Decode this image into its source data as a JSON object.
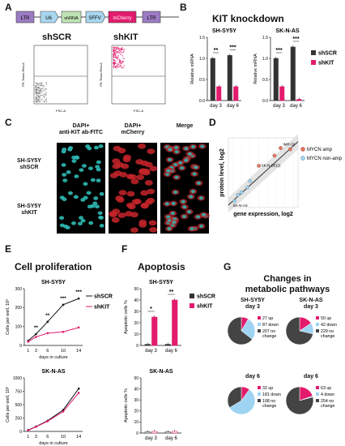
{
  "panels": {
    "A": "A",
    "B": "B",
    "C": "C",
    "D": "D",
    "E": "E",
    "F": "F",
    "G": "G"
  },
  "colors": {
    "mcherry": "#e31b6d",
    "gray": "#333333",
    "purple": "#9b7cc2",
    "blue": "#a8d6ee",
    "green": "#bfe3b4",
    "lightblue": "#9fd3f2",
    "salmon": "#e6735c"
  },
  "A": {
    "construct": [
      "LTR",
      "U6",
      "shRNA",
      "SFFV",
      "mCherry",
      "LTR"
    ],
    "flow_left_label": "shSCR",
    "flow_right_label": "shKIT",
    "y_axis": "PE-Texas Red-A",
    "x_axis": "FSC-A"
  },
  "B": {
    "title": "KIT knockdown",
    "legend": [
      "shSCR",
      "shKIT"
    ],
    "chart_data": [
      {
        "type": "bar",
        "title": "SH-SY5Y",
        "ylabel": "Relative mRNA",
        "categories": [
          "day 3",
          "day 6"
        ],
        "ylim": [
          0,
          1.5
        ],
        "yticks": [
          "0.0",
          "0.5",
          "1.0",
          "1.5"
        ],
        "series": [
          {
            "name": "shSCR",
            "values": [
              1.0,
              1.07
            ]
          },
          {
            "name": "shKIT",
            "values": [
              0.33,
              0.33
            ]
          }
        ],
        "sig": [
          "**",
          "***"
        ]
      },
      {
        "type": "bar",
        "title": "SK-N-AS",
        "ylabel": "Relative mRNA",
        "categories": [
          "day 3",
          "day 6"
        ],
        "ylim": [
          0,
          1.5
        ],
        "yticks": [
          "0.0",
          "0.5",
          "1.0",
          "1.5"
        ],
        "series": [
          {
            "name": "shSCR",
            "values": [
              1.0,
              1.27
            ]
          },
          {
            "name": "shKIT",
            "values": [
              0.33,
              0.03
            ]
          }
        ],
        "sig": [
          "***",
          "***"
        ]
      }
    ]
  },
  "C": {
    "headers": [
      "DAPI+\nanti-KIT ab-FITC",
      "DAPI+\nmCherry",
      "Merge"
    ],
    "rows": [
      "SH-SY5Y\nshSCR",
      "SH-SY5Y\nshKIT"
    ]
  },
  "D": {
    "chart_data": {
      "type": "scatter",
      "xlabel": "gene expression, log2",
      "ylabel": "protein level, log2",
      "series": [
        {
          "name": "MYCN amp",
          "values": [
            [
              1.0,
              1.3
            ],
            [
              3.5,
              2.7
            ],
            [
              4.6,
              2.6
            ],
            [
              2.8,
              2.1
            ]
          ]
        },
        {
          "name": "MYCN non-amp",
          "values": [
            [
              -1.8,
              -1.5
            ],
            [
              -1.0,
              -0.8
            ],
            [
              -0.3,
              -0.4
            ],
            [
              -1.4,
              -1.0
            ],
            [
              0.0,
              0.1
            ]
          ]
        }
      ],
      "annotations": [
        "IMR-32",
        "SK-N-BE(2)",
        "SK-N-AS"
      ]
    }
  },
  "E": {
    "title": "Cell proliferation",
    "legend": [
      "shSCR",
      "shKIT"
    ],
    "chart_data": [
      {
        "type": "line",
        "title": "SH-SY5Y",
        "ylabel": "Cells per well, 10³",
        "xlabel": "days in culture",
        "x": [
          1,
          3,
          6,
          10,
          14
        ],
        "xticks": [
          "1",
          "3",
          "6",
          "10",
          "14"
        ],
        "ylim": [
          0,
          300
        ],
        "yticks": [
          "0",
          "100",
          "200",
          "300"
        ],
        "series": [
          {
            "name": "shSCR",
            "values": [
              25,
              60,
              125,
              215,
              248
            ]
          },
          {
            "name": "shKIT",
            "values": [
              20,
              45,
              65,
              72,
              95
            ]
          }
        ],
        "sig": [
          "**",
          "**",
          "***",
          "***"
        ]
      },
      {
        "type": "line",
        "title": "SK-N-AS",
        "ylabel": "Cells per well, 10³",
        "xlabel": "days in culture",
        "x": [
          1,
          3,
          6,
          10,
          14
        ],
        "xticks": [
          "1",
          "3",
          "6",
          "10",
          "14"
        ],
        "ylim": [
          0,
          1000
        ],
        "yticks": [
          "0",
          "250",
          "500",
          "750",
          "1000"
        ],
        "series": [
          {
            "name": "shSCR",
            "values": [
              25,
              90,
              200,
              400,
              800
            ]
          },
          {
            "name": "shKIT",
            "values": [
              20,
              85,
              190,
              370,
              720
            ]
          }
        ]
      }
    ]
  },
  "F": {
    "title": "Apoptosis",
    "legend": [
      "shSCR",
      "shKIT"
    ],
    "chart_data": [
      {
        "type": "bar",
        "title": "SH-SY5Y",
        "ylabel": "Apoptotic cells %",
        "categories": [
          "day 3",
          "day 6"
        ],
        "ylim": [
          0,
          50
        ],
        "yticks": [
          "0",
          "10",
          "20",
          "30",
          "40",
          "50"
        ],
        "series": [
          {
            "name": "shSCR",
            "values": [
              1,
              1
            ]
          },
          {
            "name": "shKIT",
            "values": [
              25,
              40
            ]
          }
        ],
        "sig": [
          "*",
          "**"
        ]
      },
      {
        "type": "bar",
        "title": "SK-N-AS",
        "ylabel": "Apoptotic cells %",
        "categories": [
          "day 3",
          "day 6"
        ],
        "ylim": [
          0,
          50
        ],
        "yticks": [
          "0",
          "10",
          "20",
          "30",
          "40",
          "50"
        ],
        "series": [
          {
            "name": "shSCR",
            "values": [
              1,
              1
            ]
          },
          {
            "name": "shKIT",
            "values": [
              1.5,
              1.5
            ]
          }
        ]
      }
    ]
  },
  "G": {
    "title": "Changes in\nmetabolic pathways",
    "chart_data": [
      {
        "type": "pie",
        "title": "SH-SY5Y\nday 3",
        "labels": [
          "27 up",
          "87 down",
          "207 no change"
        ],
        "values": [
          27,
          87,
          207
        ]
      },
      {
        "type": "pie",
        "title": "SK-N-AS\nday 3",
        "labels": [
          "50 up",
          "42 down",
          "229 no change"
        ],
        "values": [
          50,
          42,
          229
        ]
      },
      {
        "type": "pie",
        "title": "day 6",
        "labels": [
          "32 up",
          "181 down",
          "108 no change"
        ],
        "values": [
          32,
          181,
          108
        ]
      },
      {
        "type": "pie",
        "title": "day 6",
        "labels": [
          "63 up",
          "4 down",
          "254 no change"
        ],
        "values": [
          63,
          4,
          254
        ]
      }
    ]
  }
}
